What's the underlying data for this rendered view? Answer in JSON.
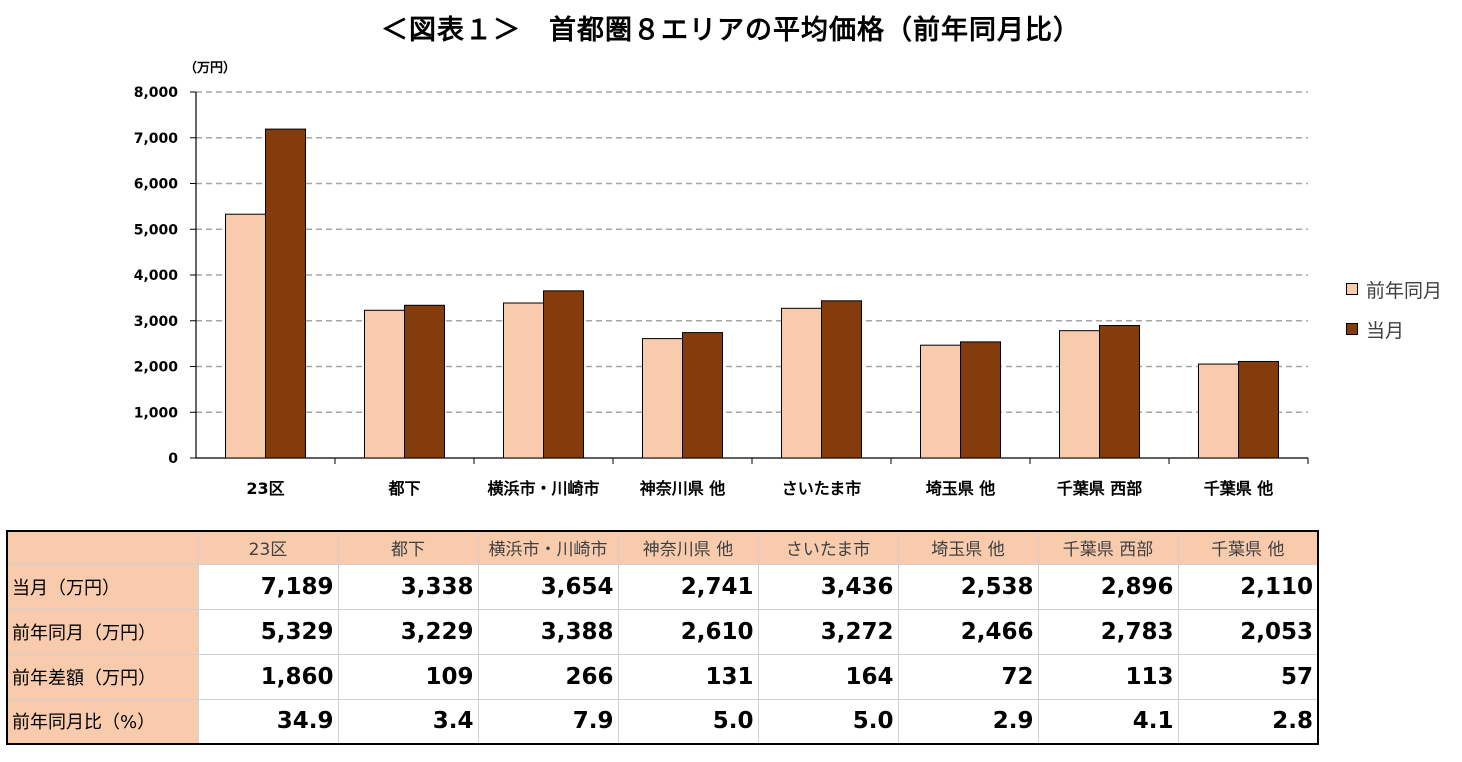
{
  "title": "＜図表１＞　首都圏８エリアの平均価格（前年同月比）",
  "chart_data": {
    "type": "bar",
    "title": "＜図表１＞　首都圏８エリアの平均価格（前年同月比）",
    "unit_label": "（万円）",
    "categories": [
      "23区",
      "都下",
      "横浜市・川崎市",
      "神奈川県 他",
      "さいたま市",
      "埼玉県 他",
      "千葉県 西部",
      "千葉県 他"
    ],
    "series": [
      {
        "name": "前年同月",
        "color": "#f8cbad",
        "values": [
          5329,
          3229,
          3388,
          2610,
          3272,
          2466,
          2783,
          2053
        ]
      },
      {
        "name": "当月",
        "color": "#843c0c",
        "values": [
          7189,
          3338,
          3654,
          2741,
          3436,
          2538,
          2896,
          2110
        ]
      }
    ],
    "ylim": [
      0,
      8000
    ],
    "yticks": [
      "0",
      "1,000",
      "2,000",
      "3,000",
      "4,000",
      "5,000",
      "6,000",
      "7,000",
      "8,000"
    ],
    "grid": true,
    "grid_style": "dashed",
    "legend_position": "right"
  },
  "table": {
    "header": [
      "23区",
      "都下",
      "横浜市・川崎市",
      "神奈川県 他",
      "さいたま市",
      "埼玉県 他",
      "千葉県 西部",
      "千葉県 他"
    ],
    "rows": [
      {
        "label": "当月（万円）",
        "cells": [
          "7,189",
          "3,338",
          "3,654",
          "2,741",
          "3,436",
          "2,538",
          "2,896",
          "2,110"
        ]
      },
      {
        "label": "前年同月（万円）",
        "cells": [
          "5,329",
          "3,229",
          "3,388",
          "2,610",
          "3,272",
          "2,466",
          "2,783",
          "2,053"
        ]
      },
      {
        "label": "前年差額（万円）",
        "cells": [
          "1,860",
          "109",
          "266",
          "131",
          "164",
          "72",
          "113",
          "57"
        ]
      },
      {
        "label": "前年同月比（%）",
        "cells": [
          "34.9",
          "3.4",
          "7.9",
          "5.0",
          "5.0",
          "2.9",
          "4.1",
          "2.8"
        ]
      }
    ]
  }
}
